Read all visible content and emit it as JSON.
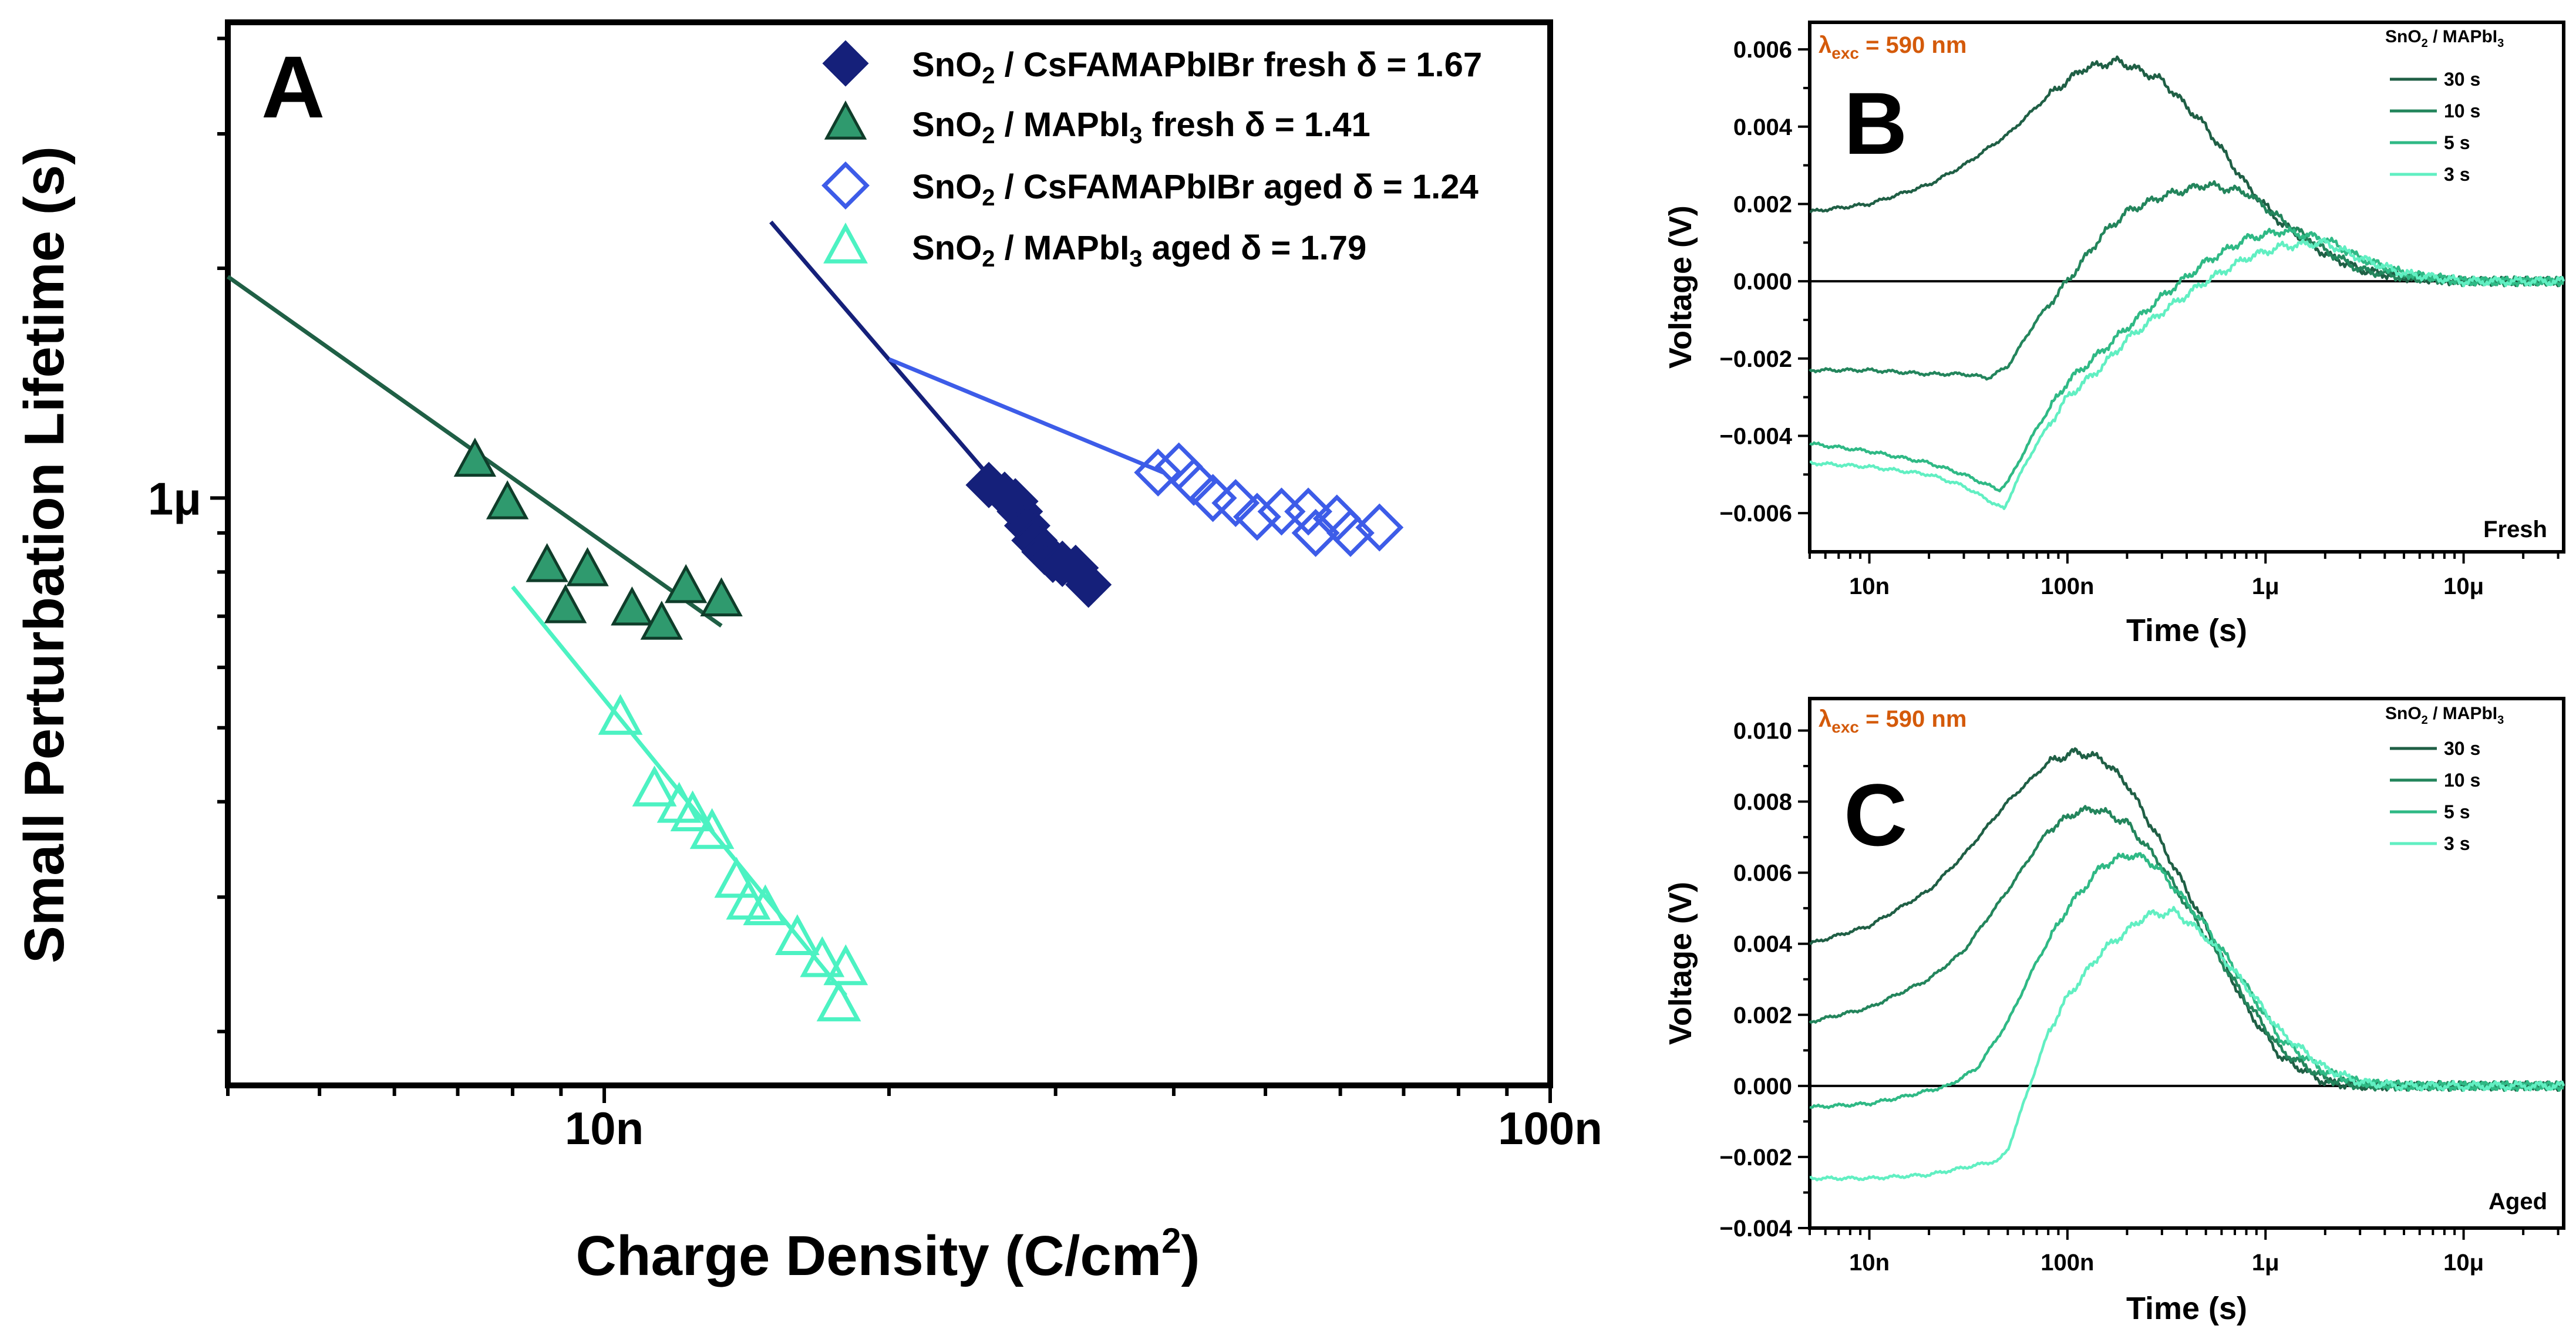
{
  "colors": {
    "navy": "#15207a",
    "blue": "#3d5ce8",
    "green": "#2f9a6e",
    "aqua": "#4cf2c2",
    "dark1": "#1f5f45",
    "dark2": "#23855c",
    "mid": "#2fb985",
    "light": "#61efc2",
    "orange": "#d45a0a"
  },
  "chart_data": [
    {
      "panel": "A",
      "type": "scatter",
      "xscale": "log",
      "yscale": "log",
      "xlabel": "Charge Density (C/cm",
      "xlabel_sup": "2",
      "xlabel_end": ")",
      "ylabel": "Small Perturbation Lifetime (s)",
      "xlim": [
        4e-09,
        1e-07
      ],
      "ylim": [
        1.7e-07,
        4.2e-06
      ],
      "xticks": [
        {
          "v": 1e-08,
          "label": "10n"
        },
        {
          "v": 1e-07,
          "label": "100n"
        }
      ],
      "yticks": [
        {
          "v": 1e-06,
          "label": "1μ"
        }
      ],
      "series": [
        {
          "name": "SnO2 / CsFAMAPbIBr fresh",
          "legend": [
            "SnO",
            "2",
            " / CsFAMAPbIBr fresh δ = 1.67"
          ],
          "marker": "diamond",
          "filled": true,
          "color": "#15207a",
          "x": [
            2.55e-08,
            2.65e-08,
            2.72e-08,
            2.75e-08,
            2.8e-08,
            2.85e-08,
            2.92e-08,
            2.98e-08,
            3.05e-08,
            3.15e-08,
            3.25e-08
          ],
          "y": [
            1.04e-06,
            1.01e-06,
            9.9e-07,
            9.6e-07,
            9.2e-07,
            8.8e-07,
            8.5e-07,
            8.3e-07,
            8.2e-07,
            8.1e-07,
            7.7e-07
          ],
          "fit": {
            "x": [
              1.5e-08,
              3.2e-08
            ],
            "y": [
              2.3e-06,
              7.7e-07
            ]
          }
        },
        {
          "name": "SnO2 / MAPbI3 fresh",
          "legend": [
            "SnO",
            "2",
            " / MAPbI",
            "3",
            " fresh δ = 1.41"
          ],
          "marker": "triangle",
          "filled": true,
          "color": "#2f9a6e",
          "x": [
            7.3e-09,
            7.9e-09,
            8.7e-09,
            9.6e-09,
            9.1e-09,
            1.07e-08,
            1.15e-08,
            1.22e-08,
            1.33e-08
          ],
          "y": [
            1.12e-06,
            9.85e-07,
            8.15e-07,
            8.05e-07,
            7.2e-07,
            7.15e-07,
            6.85e-07,
            7.65e-07,
            7.35e-07
          ],
          "fit": {
            "x": [
              4e-09,
              1.33e-08
            ],
            "y": [
              1.95e-06,
              6.8e-07
            ]
          }
        },
        {
          "name": "SnO2 / CsFAMAPbIBr aged",
          "legend": [
            "SnO",
            "2",
            " / CsFAMAPbIBr aged δ = 1.24"
          ],
          "marker": "diamond",
          "filled": false,
          "color": "#3d5ce8",
          "x": [
            3.85e-08,
            4.05e-08,
            4.2e-08,
            4.4e-08,
            4.65e-08,
            4.9e-08,
            5.2e-08,
            5.55e-08,
            5.65e-08,
            5.95e-08,
            6.15e-08,
            6.6e-08
          ],
          "y": [
            1.08e-06,
            1.1e-06,
            1.05e-06,
            1e-06,
            9.85e-07,
            9.45e-07,
            9.6e-07,
            9.6e-07,
            9e-07,
            9.4e-07,
            9e-07,
            9.15e-07
          ],
          "fit": {
            "x": [
              2e-08,
              3.9e-08
            ],
            "y": [
              1.52e-06,
              1.08e-06
            ]
          }
        },
        {
          "name": "SnO2 / MAPbI3 aged",
          "legend": [
            "SnO",
            "2",
            " / MAPbI",
            "3",
            " aged δ = 1.79"
          ],
          "marker": "triangle",
          "filled": false,
          "color": "#4cf2c2",
          "x": [
            1.04e-08,
            1.13e-08,
            1.2e-08,
            1.24e-08,
            1.3e-08,
            1.38e-08,
            1.42e-08,
            1.48e-08,
            1.6e-08,
            1.7e-08,
            1.8e-08,
            1.77e-08
          ],
          "y": [
            5.15e-07,
            4.15e-07,
            3.95e-07,
            3.85e-07,
            3.65e-07,
            3.15e-07,
            2.95e-07,
            2.9e-07,
            2.65e-07,
            2.48e-07,
            2.42e-07,
            2.17e-07
          ],
          "fit": {
            "x": [
              8e-09,
              1.8e-08
            ],
            "y": [
              7.65e-07,
              2.23e-07
            ]
          }
        }
      ]
    },
    {
      "panel": "B",
      "type": "line",
      "xscale": "log",
      "xlabel": "Time (s)",
      "ylabel": "Voltage (V)",
      "xlim": [
        5e-09,
        3.2e-05
      ],
      "ylim": [
        -0.007,
        0.0067
      ],
      "xticks": [
        {
          "v": 1e-08,
          "label": "10n"
        },
        {
          "v": 1e-07,
          "label": "100n"
        },
        {
          "v": 1e-06,
          "label": "1μ"
        },
        {
          "v": 1e-05,
          "label": "10μ"
        }
      ],
      "yticks": [
        -0.006,
        -0.004,
        -0.002,
        0.0,
        0.002,
        0.004,
        0.006
      ],
      "ytick_labels": [
        "−0.006",
        "−0.004",
        "−0.002",
        "0.000",
        "0.002",
        "0.004",
        "0.006"
      ],
      "annotation": [
        "λ",
        "exc",
        " = 590 nm"
      ],
      "legend_title": [
        "SnO",
        "2",
        " / MAPbI",
        "3"
      ],
      "condition": "Fresh",
      "series": [
        {
          "name": "30 s",
          "x": [
            5e-09,
            1e-08,
            2e-08,
            3e-08,
            5e-08,
            8e-08,
            1.2e-07,
            1.8e-07,
            3e-07,
            5e-07,
            8e-07,
            1.2e-06,
            2e-06,
            3e-06,
            5e-06,
            1e-05,
            3.2e-05
          ],
          "y": [
            0.0018,
            0.002,
            0.0025,
            0.003,
            0.0038,
            0.0048,
            0.0055,
            0.0057,
            0.0052,
            0.004,
            0.0025,
            0.0015,
            0.0007,
            0.0003,
            0.0001,
            0.0,
            0.0
          ]
        },
        {
          "name": "10 s",
          "x": [
            5e-09,
            1e-08,
            2e-08,
            3e-08,
            4e-08,
            5e-08,
            7e-08,
            1e-07,
            1.5e-07,
            2e-07,
            3e-07,
            5e-07,
            8e-07,
            1.2e-06,
            2e-06,
            3e-06,
            5e-06,
            1e-05,
            3.2e-05
          ],
          "y": [
            -0.0023,
            -0.0023,
            -0.0024,
            -0.0024,
            -0.0025,
            -0.0022,
            -0.001,
            0.0,
            0.0012,
            0.0018,
            0.0022,
            0.0025,
            0.0023,
            0.0016,
            0.0008,
            0.0003,
            0.0001,
            0.0,
            0.0
          ]
        },
        {
          "name": "5 s",
          "x": [
            5e-09,
            1e-08,
            2e-08,
            3e-08,
            4.5e-08,
            5e-08,
            7e-08,
            1e-07,
            1.5e-07,
            2e-07,
            3e-07,
            5e-07,
            8e-07,
            1.2e-06,
            2e-06,
            3e-06,
            5e-06,
            1e-05,
            3.2e-05
          ],
          "y": [
            -0.0042,
            -0.0044,
            -0.0047,
            -0.005,
            -0.0054,
            -0.0052,
            -0.0038,
            -0.0026,
            -0.0018,
            -0.0012,
            -0.0004,
            0.0005,
            0.0011,
            0.0013,
            0.0011,
            0.0006,
            0.0002,
            0.0,
            0.0
          ]
        },
        {
          "name": "3 s",
          "x": [
            5e-09,
            1e-08,
            2e-08,
            3e-08,
            4.8e-08,
            5.5e-08,
            7e-08,
            1e-07,
            1.5e-07,
            2e-07,
            3e-07,
            5e-07,
            8e-07,
            1.2e-06,
            2e-06,
            3e-06,
            5e-06,
            1e-05,
            3.2e-05
          ],
          "y": [
            -0.0047,
            -0.0048,
            -0.005,
            -0.0053,
            -0.0059,
            -0.0052,
            -0.0042,
            -0.003,
            -0.0022,
            -0.0015,
            -0.0008,
            0.0,
            0.0006,
            0.0009,
            0.001,
            0.0006,
            0.0002,
            0.0,
            0.0
          ]
        }
      ]
    },
    {
      "panel": "C",
      "type": "line",
      "xscale": "log",
      "xlabel": "Time (s)",
      "ylabel": "Voltage (V)",
      "xlim": [
        5e-09,
        3.2e-05
      ],
      "ylim": [
        -0.004,
        0.0109
      ],
      "xticks": [
        {
          "v": 1e-08,
          "label": "10n"
        },
        {
          "v": 1e-07,
          "label": "100n"
        },
        {
          "v": 1e-06,
          "label": "1μ"
        },
        {
          "v": 1e-05,
          "label": "10μ"
        }
      ],
      "yticks": [
        -0.004,
        -0.002,
        0.0,
        0.002,
        0.004,
        0.006,
        0.008,
        0.01
      ],
      "ytick_labels": [
        "−0.004",
        "−0.002",
        "0.000",
        "0.002",
        "0.004",
        "0.006",
        "0.008",
        "0.010"
      ],
      "annotation": [
        "λ",
        "exc",
        " = 590 nm"
      ],
      "legend_title": [
        "SnO",
        "2",
        " / MAPbI",
        "3"
      ],
      "condition": "Aged",
      "series": [
        {
          "name": "30 s",
          "x": [
            5e-09,
            1e-08,
            2e-08,
            3e-08,
            5e-08,
            8e-08,
            1.1e-07,
            1.5e-07,
            2e-07,
            3e-07,
            5e-07,
            8e-07,
            1.2e-06,
            2e-06,
            3e-06,
            5e-06,
            1e-05,
            3.2e-05
          ],
          "y": [
            0.004,
            0.0045,
            0.0055,
            0.0065,
            0.008,
            0.0091,
            0.0094,
            0.0092,
            0.0085,
            0.0068,
            0.0045,
            0.0022,
            0.0008,
            0.0001,
            0.0,
            0.0,
            0.0,
            0.0
          ]
        },
        {
          "name": "10 s",
          "x": [
            5e-09,
            1e-08,
            2e-08,
            3e-08,
            5e-08,
            8e-08,
            1.1e-07,
            1.4e-07,
            2e-07,
            3e-07,
            5e-07,
            8e-07,
            1.2e-06,
            2e-06,
            3e-06,
            5e-06,
            1e-05,
            3.2e-05
          ],
          "y": [
            0.0018,
            0.0022,
            0.003,
            0.0038,
            0.0055,
            0.0072,
            0.0077,
            0.0078,
            0.0074,
            0.0062,
            0.0042,
            0.0024,
            0.001,
            0.0002,
            0.0,
            0.0,
            0.0,
            0.0
          ]
        },
        {
          "name": "5 s",
          "x": [
            5e-09,
            1e-08,
            1.5e-08,
            2.5e-08,
            3.5e-08,
            5e-08,
            7e-08,
            1e-07,
            1.5e-07,
            2e-07,
            2.5e-07,
            3e-07,
            5e-07,
            8e-07,
            1.2e-06,
            2e-06,
            3e-06,
            5e-06,
            1e-05,
            3.2e-05
          ],
          "y": [
            -0.0006,
            -0.0005,
            -0.0003,
            0.0,
            0.0005,
            0.0018,
            0.0035,
            0.005,
            0.0062,
            0.0065,
            0.0064,
            0.006,
            0.0045,
            0.0028,
            0.0013,
            0.0004,
            0.0001,
            0.0,
            0.0,
            0.0
          ]
        },
        {
          "name": "3 s",
          "x": [
            5e-09,
            1e-08,
            2e-08,
            3e-08,
            4.5e-08,
            5e-08,
            6e-08,
            8e-08,
            1e-07,
            1.5e-07,
            2.5e-07,
            3.5e-07,
            5e-07,
            8e-07,
            1.2e-06,
            2e-06,
            3e-06,
            5e-06,
            1e-05,
            3.2e-05
          ],
          "y": [
            -0.0026,
            -0.0026,
            -0.0025,
            -0.0023,
            -0.0021,
            -0.0018,
            -0.0005,
            0.0015,
            0.0025,
            0.0038,
            0.0048,
            0.0049,
            0.0042,
            0.0028,
            0.0015,
            0.0005,
            0.0001,
            0.0,
            0.0,
            0.0
          ]
        }
      ]
    }
  ]
}
